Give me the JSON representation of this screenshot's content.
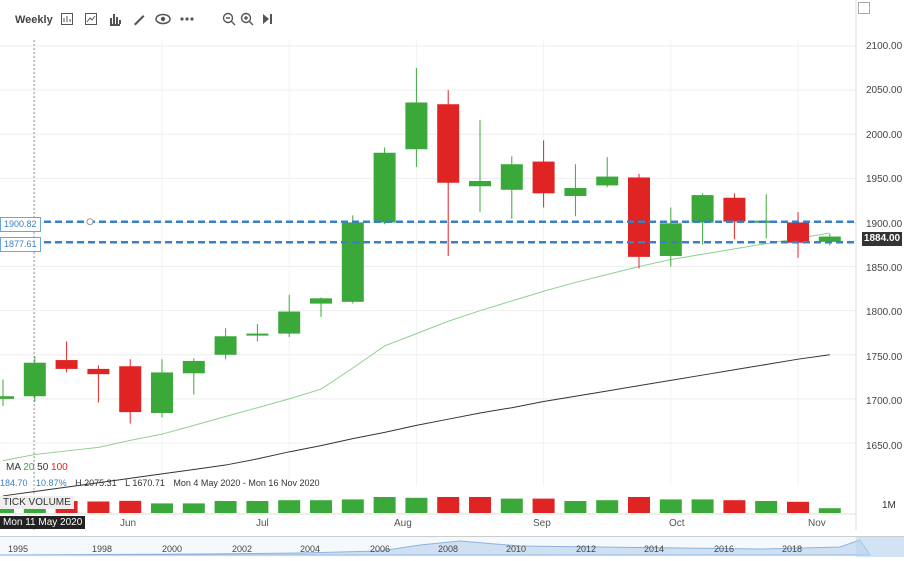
{
  "toolbar": {
    "interval": "Weekly",
    "icons": [
      "chart-type-icon",
      "indicators-icon",
      "bar-chart-icon",
      "draw-icon",
      "eye-icon",
      "more-icon",
      "zoom-out-icon",
      "zoom-in-icon",
      "go-latest-icon"
    ]
  },
  "price_axis": [
    "2100.00",
    "2050.00",
    "2000.00",
    "1950.00",
    "1900.00",
    "1850.00",
    "1800.00",
    "1750.00",
    "1700.00",
    "1650.00"
  ],
  "levels": {
    "upper": "1900.82",
    "lower": "1877.61",
    "current": "1884.00"
  },
  "ma_legend": {
    "label": "MA",
    "p1": "20",
    "p2": "50",
    "p3": "100"
  },
  "ohlc": {
    "change_val": "184.70",
    "change_pct": "10.87%",
    "high": "H 2075.31",
    "low": "L 1670.71",
    "range": "Mon 4 May 2020 - Mon 16 Nov 2020"
  },
  "volume": {
    "label": "TICK VOLUME",
    "scale": "1M"
  },
  "crosshair_date": "Mon 11 May 2020",
  "months": [
    "Jun",
    "Jul",
    "Aug",
    "Sep",
    "Oct",
    "Nov"
  ],
  "navigator_years": [
    "1995",
    "1998",
    "2000",
    "2002",
    "2004",
    "2006",
    "2008",
    "2010",
    "2012",
    "2014",
    "2016",
    "2018"
  ],
  "colors": {
    "up": "#3aa93a",
    "down": "#e02424",
    "ma20": "#8fd18f",
    "ma50": "#333333",
    "level": "#3b7fc4"
  },
  "chart_data": {
    "type": "candlestick",
    "candles": [
      {
        "o": 1700,
        "h": 1722,
        "l": 1692,
        "c": 1703
      },
      {
        "o": 1703,
        "h": 1748,
        "l": 1697,
        "c": 1741
      },
      {
        "o": 1744,
        "h": 1765,
        "l": 1730,
        "c": 1734
      },
      {
        "o": 1734,
        "h": 1738,
        "l": 1696,
        "c": 1728
      },
      {
        "o": 1737,
        "h": 1745,
        "l": 1672,
        "c": 1685
      },
      {
        "o": 1684,
        "h": 1745,
        "l": 1679,
        "c": 1730
      },
      {
        "o": 1729,
        "h": 1746,
        "l": 1705,
        "c": 1743
      },
      {
        "o": 1750,
        "h": 1780,
        "l": 1745,
        "c": 1771
      },
      {
        "o": 1774,
        "h": 1785,
        "l": 1765,
        "c": 1774
      },
      {
        "o": 1774,
        "h": 1818,
        "l": 1770,
        "c": 1799
      },
      {
        "o": 1808,
        "h": 1815,
        "l": 1793,
        "c": 1814
      },
      {
        "o": 1810,
        "h": 1908,
        "l": 1808,
        "c": 1900
      },
      {
        "o": 1900,
        "h": 1985,
        "l": 1898,
        "c": 1979
      },
      {
        "o": 1983,
        "h": 2075,
        "l": 1963,
        "c": 2036
      },
      {
        "o": 2034,
        "h": 2050,
        "l": 1862,
        "c": 1945
      },
      {
        "o": 1941,
        "h": 2016,
        "l": 1912,
        "c": 1947
      },
      {
        "o": 1937,
        "h": 1975,
        "l": 1904,
        "c": 1966
      },
      {
        "o": 1969,
        "h": 1993,
        "l": 1917,
        "c": 1933
      },
      {
        "o": 1930,
        "h": 1966,
        "l": 1907,
        "c": 1939
      },
      {
        "o": 1942,
        "h": 1974,
        "l": 1940,
        "c": 1952
      },
      {
        "o": 1951,
        "h": 1955,
        "l": 1848,
        "c": 1861
      },
      {
        "o": 1862,
        "h": 1917,
        "l": 1850,
        "c": 1899
      },
      {
        "o": 1900,
        "h": 1933,
        "l": 1875,
        "c": 1931
      },
      {
        "o": 1928,
        "h": 1933,
        "l": 1881,
        "c": 1901
      },
      {
        "o": 1901,
        "h": 1932,
        "l": 1882,
        "c": 1902
      },
      {
        "o": 1900,
        "h": 1912,
        "l": 1860,
        "c": 1877
      },
      {
        "o": 1878,
        "h": 1887,
        "l": 1874,
        "c": 1884
      }
    ],
    "ma20": [
      1630,
      1637,
      1641,
      1645,
      1653,
      1660,
      1670,
      1680,
      1690,
      1700,
      1711,
      1735,
      1760,
      1774,
      1788,
      1800,
      1811,
      1822,
      1832,
      1841,
      1850,
      1858,
      1864,
      1870,
      1876,
      1882,
      1888
    ],
    "ma50": [
      1590,
      1595,
      1600,
      1605,
      1610,
      1615,
      1620,
      1625,
      1632,
      1640,
      1647,
      1655,
      1662,
      1670,
      1677,
      1684,
      1690,
      1697,
      1703,
      1709,
      1715,
      1721,
      1727,
      1733,
      1739,
      1745,
      1750
    ],
    "volume_dir": [
      "up",
      "up",
      "down",
      "down",
      "down",
      "up",
      "up",
      "up",
      "up",
      "up",
      "up",
      "up",
      "up",
      "up",
      "down",
      "down",
      "up",
      "down",
      "up",
      "up",
      "down",
      "up",
      "up",
      "down",
      "up",
      "down",
      "up"
    ],
    "volume_rel": [
      0.6,
      0.7,
      0.75,
      0.72,
      0.76,
      0.6,
      0.6,
      0.75,
      0.75,
      0.8,
      0.8,
      0.85,
      1.0,
      0.95,
      1.0,
      1.0,
      0.9,
      0.9,
      0.75,
      0.8,
      1.0,
      0.85,
      0.85,
      0.8,
      0.75,
      0.7,
      0.3
    ]
  }
}
